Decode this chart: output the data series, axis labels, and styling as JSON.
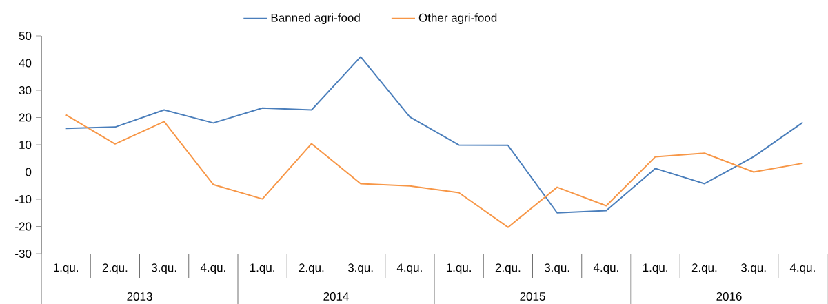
{
  "chart_data": {
    "type": "line",
    "categories": [
      "1.qu.",
      "2.qu.",
      "3.qu.",
      "4.qu.",
      "1.qu.",
      "2.qu.",
      "3.qu.",
      "4.qu.",
      "1.qu.",
      "2.qu.",
      "3.qu.",
      "4.qu.",
      "1.qu.",
      "2.qu.",
      "3.qu.",
      "4.qu."
    ],
    "annotations": [
      "2013",
      "2014",
      "2015",
      "2016"
    ],
    "series": [
      {
        "name": "Banned agri-food",
        "color": "#4a7ebb",
        "values": [
          16.0,
          16.5,
          22.8,
          18.0,
          23.5,
          22.8,
          42.3,
          20.2,
          9.9,
          9.8,
          -15.0,
          -14.2,
          1.3,
          -4.3,
          5.6,
          18.2
        ]
      },
      {
        "name": "Other agri-food",
        "color": "#f79646",
        "values": [
          21.0,
          10.3,
          18.5,
          -4.6,
          -9.9,
          10.4,
          -4.3,
          -5.1,
          -7.6,
          -20.3,
          -5.6,
          -12.4,
          5.6,
          6.9,
          0.0,
          3.2
        ]
      }
    ],
    "ylim": [
      -30,
      50
    ],
    "yticks": [
      -30,
      -20,
      -10,
      0,
      10,
      20,
      30,
      40,
      50
    ],
    "legend": "top",
    "marker": "none",
    "line_style": "solid"
  }
}
